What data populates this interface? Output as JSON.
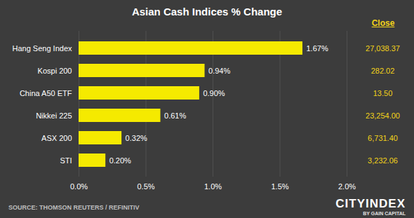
{
  "chart_data": {
    "type": "bar",
    "orientation": "horizontal",
    "title": "Asian Cash Indices % Change",
    "categories": [
      "Hang Seng Index",
      "Kospi 200",
      "China A50 ETF",
      "Nikkei 225",
      "ASX 200",
      "STI"
    ],
    "values": [
      1.67,
      0.94,
      0.9,
      0.61,
      0.32,
      0.2
    ],
    "value_labels": [
      "1.67%",
      "0.94%",
      "0.90%",
      "0.61%",
      "0.32%",
      "0.20%"
    ],
    "data_labels": true,
    "color": "#f5ea00",
    "xlim": [
      0,
      2
    ],
    "xticks": [
      {
        "value": 0,
        "label": "0.0%"
      },
      {
        "value": 0.5,
        "label": "0.5%"
      },
      {
        "value": 1,
        "label": "1.0%"
      },
      {
        "value": 1.5,
        "label": "1.5%"
      },
      {
        "value": 2,
        "label": "2.0%"
      }
    ],
    "grid": true,
    "close_header": "Close",
    "close_values": [
      "27,038.37",
      "282.02",
      "13.50",
      "23,254.00",
      "6,731.40",
      "3,232.06"
    ],
    "source": "SOURCE: THOMSON REUTERS / REFINITIV",
    "logo": "CITYINDEX",
    "logo_subtitle": "BY GAIN CAPITAL"
  }
}
